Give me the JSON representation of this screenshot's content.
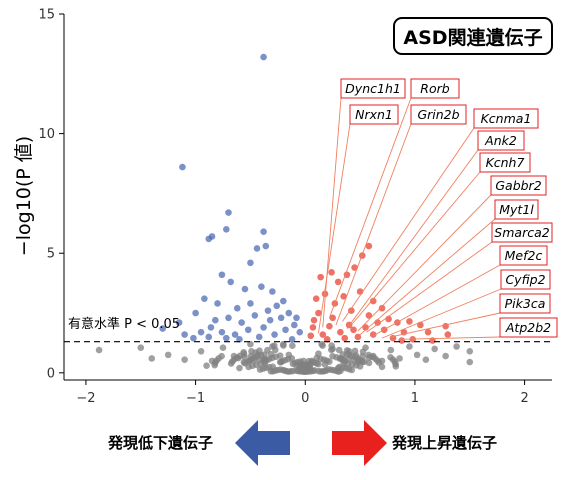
{
  "title": "ASD関連遺伝子",
  "legend": {
    "down_label": "発現低下遺伝子",
    "up_label": "発現上昇遺伝子",
    "down_color": "#3b5ba5",
    "up_color": "#e8201e"
  },
  "chart_data": {
    "type": "scatter",
    "title": "ASD関連遺伝子",
    "xlabel": "",
    "ylabel": "−log10(P 値)",
    "xlim": [
      -2.2,
      2.25
    ],
    "ylim": [
      -0.3,
      15
    ],
    "xticks": [
      "−2",
      "−1",
      "0",
      "1",
      "2"
    ],
    "xtick_values": [
      -2,
      -1,
      0,
      1,
      2
    ],
    "yticks": [
      "0",
      "5",
      "10",
      "15"
    ],
    "ytick_values": [
      0,
      5,
      10,
      15
    ],
    "grid": false,
    "threshold": {
      "value": 1.3,
      "label": "有意水準 P < 0.05"
    },
    "colors": {
      "down": "#4a66b3",
      "up": "#e83a2a",
      "nonsignificant": "#808080",
      "highlight_box": "#e02020",
      "leader_line": "#f08060"
    },
    "series": [
      {
        "group": "down",
        "points": [
          [
            -0.38,
            13.2
          ],
          [
            -1.12,
            8.6
          ],
          [
            -0.7,
            6.7
          ],
          [
            -0.38,
            5.9
          ],
          [
            -0.36,
            5.3
          ],
          [
            -0.85,
            5.7
          ],
          [
            -0.72,
            6.0
          ],
          [
            -0.88,
            5.6
          ],
          [
            -0.44,
            5.2
          ],
          [
            -0.5,
            4.6
          ],
          [
            -0.76,
            4.1
          ],
          [
            -0.68,
            3.8
          ],
          [
            -0.55,
            3.5
          ],
          [
            -0.4,
            3.6
          ],
          [
            -0.3,
            3.4
          ],
          [
            -0.92,
            3.1
          ],
          [
            -0.8,
            2.9
          ],
          [
            -0.62,
            2.7
          ],
          [
            -0.2,
            3.0
          ],
          [
            -0.15,
            2.5
          ],
          [
            -1.0,
            2.5
          ],
          [
            -1.15,
            2.1
          ],
          [
            -1.3,
            1.85
          ],
          [
            -1.1,
            1.6
          ],
          [
            -0.95,
            1.7
          ],
          [
            -0.82,
            2.2
          ],
          [
            -0.7,
            2.3
          ],
          [
            -0.58,
            2.1
          ],
          [
            -0.46,
            2.4
          ],
          [
            -0.32,
            2.2
          ],
          [
            -0.26,
            2.8
          ],
          [
            -0.1,
            2.0
          ],
          [
            -0.05,
            1.7
          ],
          [
            -0.18,
            1.8
          ],
          [
            -0.38,
            1.9
          ],
          [
            -0.52,
            1.8
          ],
          [
            -0.64,
            1.6
          ],
          [
            -0.76,
            1.7
          ],
          [
            -0.88,
            1.5
          ],
          [
            -1.02,
            1.45
          ],
          [
            -0.42,
            1.5
          ],
          [
            -0.28,
            1.6
          ],
          [
            -0.12,
            1.4
          ],
          [
            -0.6,
            1.4
          ],
          [
            -0.72,
            1.45
          ],
          [
            -0.34,
            2.6
          ],
          [
            -0.5,
            2.9
          ],
          [
            -0.22,
            2.3
          ],
          [
            -0.86,
            1.9
          ],
          [
            -0.08,
            2.3
          ]
        ]
      },
      {
        "group": "up",
        "points": [
          [
            0.58,
            5.3
          ],
          [
            0.52,
            4.9
          ],
          [
            0.45,
            4.4
          ],
          [
            0.38,
            4.1
          ],
          [
            0.3,
            3.8
          ],
          [
            0.24,
            4.2
          ],
          [
            0.14,
            4.0
          ],
          [
            0.18,
            3.3
          ],
          [
            0.35,
            3.2
          ],
          [
            0.5,
            3.4
          ],
          [
            0.62,
            3.0
          ],
          [
            0.7,
            2.7
          ],
          [
            0.1,
            3.1
          ],
          [
            0.27,
            2.9
          ],
          [
            0.42,
            2.6
          ],
          [
            0.58,
            2.4
          ],
          [
            0.76,
            2.25
          ],
          [
            0.84,
            2.1
          ],
          [
            0.95,
            2.15
          ],
          [
            1.05,
            2.0
          ],
          [
            1.12,
            1.7
          ],
          [
            1.28,
            1.95
          ],
          [
            1.3,
            1.6
          ],
          [
            0.9,
            1.7
          ],
          [
            0.72,
            1.8
          ],
          [
            0.55,
            1.9
          ],
          [
            0.4,
            2.0
          ],
          [
            0.25,
            2.3
          ],
          [
            0.12,
            2.5
          ],
          [
            0.07,
            1.9
          ],
          [
            0.16,
            1.6
          ],
          [
            0.32,
            1.7
          ],
          [
            0.48,
            1.5
          ],
          [
            0.62,
            1.6
          ],
          [
            0.8,
            1.45
          ],
          [
            0.98,
            1.4
          ],
          [
            0.2,
            1.4
          ],
          [
            0.05,
            1.55
          ],
          [
            0.36,
            1.45
          ],
          [
            0.66,
            2.1
          ],
          [
            0.88,
            1.35
          ],
          [
            1.16,
            1.35
          ],
          [
            0.44,
            1.8
          ],
          [
            0.22,
            1.95
          ],
          [
            0.08,
            2.2
          ]
        ]
      },
      {
        "group": "nonsignificant",
        "points": [
          [
            -1.88,
            0.95
          ],
          [
            -1.4,
            0.6
          ],
          [
            -1.25,
            0.75
          ],
          [
            -1.1,
            0.55
          ],
          [
            -0.95,
            0.9
          ],
          [
            -0.85,
            0.5
          ],
          [
            -0.75,
            1.05
          ],
          [
            -0.65,
            0.7
          ],
          [
            -0.55,
            0.4
          ],
          [
            -0.45,
            0.85
          ],
          [
            -0.38,
            0.55
          ],
          [
            -0.3,
            1.1
          ],
          [
            -0.22,
            0.45
          ],
          [
            -0.15,
            0.75
          ],
          [
            -0.08,
            0.3
          ],
          [
            -0.02,
            0.1
          ],
          [
            0.02,
            0.15
          ],
          [
            0.06,
            0.5
          ],
          [
            0.12,
            0.8
          ],
          [
            0.18,
            0.35
          ],
          [
            0.25,
            1.0
          ],
          [
            0.32,
            0.6
          ],
          [
            0.4,
            0.9
          ],
          [
            0.48,
            0.45
          ],
          [
            0.55,
            1.05
          ],
          [
            0.62,
            0.7
          ],
          [
            0.7,
            0.5
          ],
          [
            0.78,
            0.95
          ],
          [
            0.86,
            0.6
          ],
          [
            0.95,
            1.1
          ],
          [
            1.02,
            0.75
          ],
          [
            1.1,
            0.55
          ],
          [
            1.18,
            1.0
          ],
          [
            1.28,
            0.7
          ],
          [
            1.38,
            1.1
          ],
          [
            1.5,
            0.45
          ],
          [
            -0.6,
            0.2
          ],
          [
            -0.9,
            0.3
          ],
          [
            0.3,
            0.2
          ],
          [
            0.7,
            0.25
          ],
          [
            -0.2,
            1.2
          ],
          [
            0.15,
            1.2
          ],
          [
            -1.5,
            1.05
          ],
          [
            1.5,
            0.9
          ],
          [
            -0.5,
            1.2
          ]
        ]
      }
    ],
    "highlighted_genes": [
      {
        "name": "Dync1h1",
        "x": 0.16,
        "y": 1.9
      },
      {
        "name": "Rorb",
        "x": 0.22,
        "y": 2.3
      },
      {
        "name": "Nrxn1",
        "x": 0.12,
        "y": 1.65
      },
      {
        "name": "Grin2b",
        "x": 0.28,
        "y": 2.0
      },
      {
        "name": "Kcnma1",
        "x": 0.34,
        "y": 2.15
      },
      {
        "name": "Ank2",
        "x": 0.38,
        "y": 1.85
      },
      {
        "name": "Kcnh7",
        "x": 0.42,
        "y": 2.0
      },
      {
        "name": "Gabbr2",
        "x": 0.48,
        "y": 1.75
      },
      {
        "name": "Myt1l",
        "x": 0.5,
        "y": 1.6
      },
      {
        "name": "Smarca2",
        "x": 0.56,
        "y": 1.7
      },
      {
        "name": "Mef2c",
        "x": 0.62,
        "y": 1.55
      },
      {
        "name": "Cyfip2",
        "x": 0.7,
        "y": 1.45
      },
      {
        "name": "Pik3ca",
        "x": 0.78,
        "y": 1.5
      },
      {
        "name": "Atp2b2",
        "x": 0.86,
        "y": 1.4
      }
    ]
  }
}
